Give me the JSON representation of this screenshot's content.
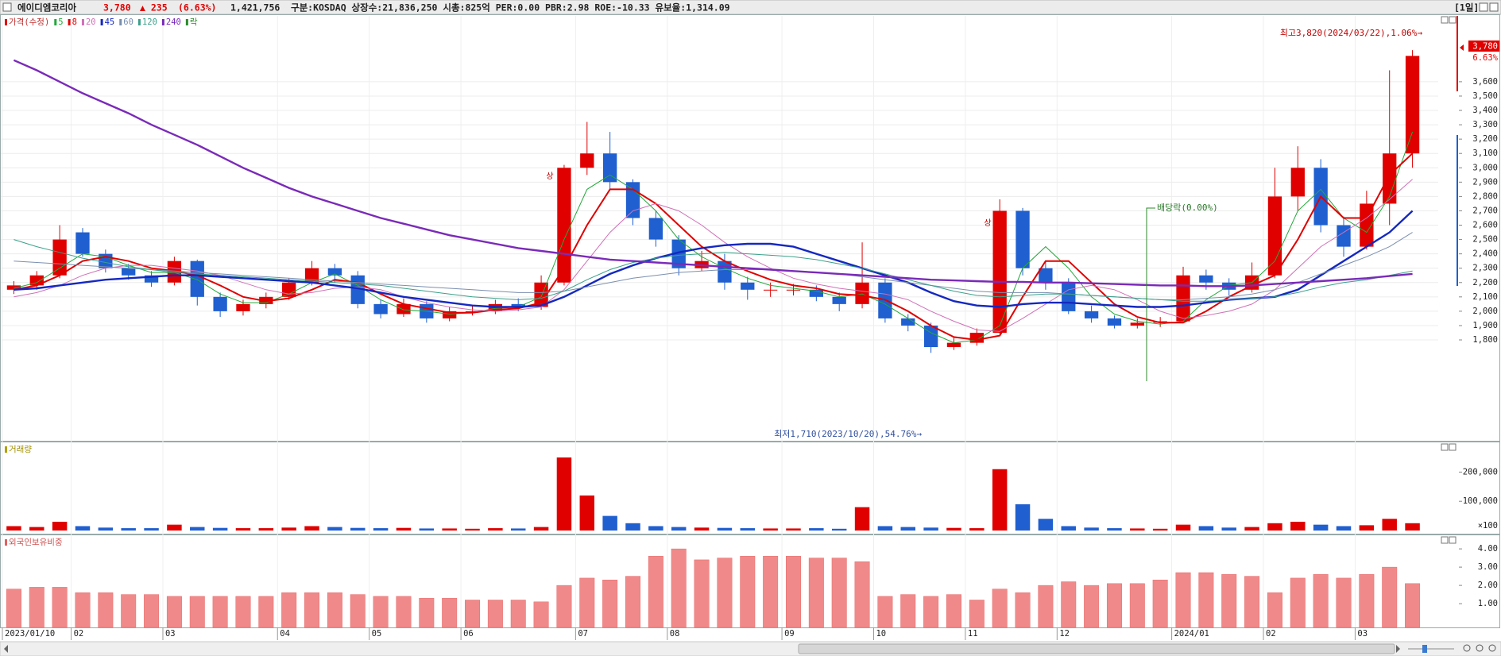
{
  "header": {
    "name": "에이디엠코리아",
    "price": "3,780",
    "change": "▲ 235",
    "change_pct": "(6.63%)",
    "volume": "1,421,756",
    "info": "구분:KOSDAQ 상장수:21,836,250 시총:825억 PER:0.00 PBR:2.98 ROE:-10.33 유보율:1,314.09",
    "period": "[1일]"
  },
  "price_tag": {
    "price": "3,780",
    "change": "6.63%"
  },
  "annotations": {
    "high": "최고3,820(2024/03/22),1.06%→",
    "low": "최저1,710(2023/10/20),54.76%→",
    "dividend": "배당락(0.00%)",
    "upper_limit": [
      "상",
      "상"
    ]
  },
  "chart_data": [
    {
      "type": "candlestick",
      "label": "가격(수정)",
      "ex_dividend_label": "락",
      "up_color": "#e00000",
      "down_color": "#1f5fd0",
      "grid": true,
      "ylim": [
        1108,
        4059
      ],
      "yticks": [
        {
          "value": 1800,
          "label": "1,800"
        },
        {
          "value": 1900,
          "label": "1,900"
        },
        {
          "value": 2000,
          "label": "2,000"
        },
        {
          "value": 2100,
          "label": "2,100"
        },
        {
          "value": 2200,
          "label": "2,200"
        },
        {
          "value": 2300,
          "label": "2,300"
        },
        {
          "value": 2400,
          "label": "2,400"
        },
        {
          "value": 2500,
          "label": "2,500"
        },
        {
          "value": 2600,
          "label": "2,600"
        },
        {
          "value": 2700,
          "label": "2,700"
        },
        {
          "value": 2800,
          "label": "2,800"
        },
        {
          "value": 2900,
          "label": "2,900"
        },
        {
          "value": 3000,
          "label": "3,000"
        },
        {
          "value": 3100,
          "label": "3,100"
        },
        {
          "value": 3200,
          "label": "3,200"
        },
        {
          "value": 3300,
          "label": "3,300"
        },
        {
          "value": 3400,
          "label": "3,400"
        },
        {
          "value": 3500,
          "label": "3,500"
        },
        {
          "value": 3600,
          "label": "3,600"
        }
      ],
      "open": [
        2150,
        2180,
        2250,
        2550,
        2400,
        2300,
        2250,
        2200,
        2350,
        2100,
        2000,
        2050,
        2100,
        2200,
        2300,
        2250,
        2050,
        1980,
        2050,
        1950,
        2000,
        2000,
        2050,
        2030,
        2200,
        3000,
        3100,
        2900,
        2650,
        2500,
        2300,
        2350,
        2200,
        2150,
        2150,
        2150,
        2100,
        2050,
        2200,
        1950,
        1900,
        1750,
        1780,
        1850,
        2700,
        2300,
        2200,
        2000,
        1950,
        1900,
        1920,
        1930,
        2250,
        2200,
        2150,
        2250,
        2800,
        3000,
        2600,
        2450,
        2750,
        3100
      ],
      "high": [
        2210,
        2280,
        2600,
        2580,
        2430,
        2330,
        2280,
        2380,
        2360,
        2130,
        2080,
        2130,
        2230,
        2350,
        2330,
        2280,
        2080,
        2090,
        2070,
        2030,
        2040,
        2080,
        2090,
        2250,
        3020,
        3320,
        3250,
        2920,
        2700,
        2530,
        2420,
        2400,
        2240,
        2200,
        2190,
        2180,
        2130,
        2480,
        2230,
        1980,
        1920,
        1820,
        1880,
        2780,
        2720,
        2350,
        2230,
        2040,
        1970,
        1950,
        1960,
        2310,
        2290,
        2230,
        2340,
        3000,
        3150,
        3060,
        2660,
        2840,
        3680,
        3820
      ],
      "low": [
        2120,
        2150,
        2230,
        2380,
        2270,
        2220,
        2170,
        2180,
        2040,
        1960,
        1970,
        2020,
        2080,
        2180,
        2200,
        2020,
        1950,
        1960,
        1920,
        1930,
        1970,
        1980,
        2000,
        2010,
        2180,
        2950,
        2850,
        2600,
        2450,
        2250,
        2280,
        2150,
        2080,
        2100,
        2110,
        2070,
        2000,
        2020,
        1920,
        1860,
        1710,
        1730,
        1760,
        1840,
        2250,
        2150,
        1980,
        1920,
        1880,
        1880,
        1890,
        1920,
        2150,
        2110,
        2130,
        2230,
        2700,
        2550,
        2380,
        2430,
        2600,
        3000
      ],
      "close": [
        2180,
        2250,
        2500,
        2400,
        2300,
        2250,
        2200,
        2350,
        2100,
        2000,
        2050,
        2100,
        2200,
        2300,
        2250,
        2050,
        1980,
        2050,
        1950,
        2000,
        2000,
        2050,
        2030,
        2200,
        3000,
        3100,
        2900,
        2650,
        2500,
        2300,
        2350,
        2200,
        2150,
        2150,
        2150,
        2100,
        2050,
        2200,
        1950,
        1900,
        1750,
        1780,
        1850,
        2700,
        2300,
        2200,
        2000,
        1950,
        1900,
        1920,
        1930,
        2250,
        2200,
        2150,
        2250,
        2800,
        3000,
        2600,
        2450,
        2750,
        3100,
        3780
      ],
      "series": [
        {
          "name": "5",
          "color": "#22a83a",
          "width": 1,
          "values": [
            2160,
            2200,
            2300,
            2400,
            2380,
            2320,
            2270,
            2270,
            2220,
            2120,
            2060,
            2060,
            2120,
            2200,
            2260,
            2180,
            2080,
            2010,
            2000,
            1980,
            1990,
            2020,
            2030,
            2100,
            2500,
            2850,
            2950,
            2850,
            2700,
            2500,
            2380,
            2300,
            2230,
            2180,
            2160,
            2140,
            2100,
            2120,
            2050,
            1950,
            1850,
            1780,
            1800,
            1900,
            2300,
            2450,
            2300,
            2100,
            1980,
            1930,
            1910,
            1930,
            2080,
            2180,
            2200,
            2350,
            2700,
            2850,
            2650,
            2550,
            2800,
            3250
          ]
        },
        {
          "name": "8",
          "color": "#e00000",
          "width": 2,
          "values": [
            2150,
            2180,
            2250,
            2350,
            2380,
            2350,
            2300,
            2280,
            2250,
            2180,
            2100,
            2070,
            2090,
            2150,
            2220,
            2200,
            2120,
            2050,
            2020,
            1990,
            1990,
            2010,
            2020,
            2060,
            2300,
            2600,
            2850,
            2850,
            2750,
            2600,
            2450,
            2350,
            2280,
            2220,
            2180,
            2160,
            2120,
            2110,
            2080,
            2000,
            1900,
            1820,
            1800,
            1830,
            2100,
            2350,
            2350,
            2200,
            2050,
            1960,
            1920,
            1920,
            2000,
            2100,
            2180,
            2250,
            2500,
            2800,
            2650,
            2650,
            2950,
            3100
          ]
        },
        {
          "name": "20",
          "color": "#d070b8",
          "width": 1,
          "values": [
            2100,
            2130,
            2180,
            2250,
            2300,
            2320,
            2320,
            2300,
            2280,
            2250,
            2200,
            2150,
            2120,
            2130,
            2160,
            2170,
            2150,
            2100,
            2060,
            2030,
            2010,
            2000,
            2010,
            2030,
            2150,
            2350,
            2550,
            2700,
            2750,
            2700,
            2600,
            2480,
            2380,
            2300,
            2230,
            2190,
            2160,
            2140,
            2120,
            2080,
            2000,
            1930,
            1870,
            1860,
            1950,
            2050,
            2150,
            2180,
            2150,
            2080,
            2000,
            1950,
            1970,
            2000,
            2050,
            2150,
            2300,
            2450,
            2550,
            2650,
            2780,
            2920
          ]
        },
        {
          "name": "45",
          "color": "#1428c0",
          "width": 2.4,
          "values": [
            2150,
            2160,
            2180,
            2200,
            2220,
            2230,
            2240,
            2250,
            2250,
            2240,
            2230,
            2220,
            2210,
            2200,
            2180,
            2160,
            2130,
            2100,
            2080,
            2060,
            2040,
            2030,
            2030,
            2040,
            2100,
            2180,
            2260,
            2320,
            2370,
            2410,
            2440,
            2460,
            2470,
            2470,
            2450,
            2400,
            2350,
            2300,
            2250,
            2200,
            2130,
            2070,
            2040,
            2030,
            2050,
            2060,
            2060,
            2050,
            2040,
            2030,
            2030,
            2040,
            2060,
            2080,
            2090,
            2100,
            2150,
            2250,
            2350,
            2450,
            2550,
            2700
          ]
        },
        {
          "name": "60",
          "color": "#7a8fb0",
          "width": 1,
          "values": [
            2350,
            2340,
            2330,
            2320,
            2310,
            2300,
            2290,
            2280,
            2270,
            2260,
            2250,
            2240,
            2230,
            2220,
            2210,
            2200,
            2190,
            2180,
            2170,
            2160,
            2150,
            2140,
            2130,
            2130,
            2140,
            2170,
            2200,
            2230,
            2250,
            2270,
            2280,
            2290,
            2290,
            2290,
            2280,
            2270,
            2260,
            2240,
            2220,
            2200,
            2180,
            2160,
            2140,
            2130,
            2130,
            2130,
            2120,
            2110,
            2100,
            2090,
            2080,
            2080,
            2090,
            2100,
            2120,
            2150,
            2200,
            2260,
            2320,
            2380,
            2450,
            2550
          ]
        },
        {
          "name": "120",
          "color": "#3aa08a",
          "width": 1,
          "values": [
            2500,
            2450,
            2410,
            2370,
            2340,
            2310,
            2290,
            2270,
            2260,
            2250,
            2240,
            2230,
            2220,
            2210,
            2200,
            2190,
            2180,
            2160,
            2140,
            2120,
            2100,
            2090,
            2080,
            2090,
            2140,
            2220,
            2290,
            2340,
            2370,
            2390,
            2400,
            2410,
            2400,
            2390,
            2380,
            2360,
            2330,
            2300,
            2260,
            2220,
            2180,
            2140,
            2110,
            2100,
            2110,
            2120,
            2120,
            2110,
            2100,
            2090,
            2080,
            2070,
            2070,
            2080,
            2090,
            2100,
            2130,
            2170,
            2200,
            2220,
            2250,
            2280
          ]
        },
        {
          "name": "240",
          "color": "#7a2ab8",
          "width": 2.4,
          "values": [
            3750,
            3680,
            3600,
            3520,
            3450,
            3380,
            3300,
            3230,
            3160,
            3080,
            3000,
            2930,
            2860,
            2800,
            2750,
            2700,
            2650,
            2610,
            2570,
            2530,
            2500,
            2470,
            2440,
            2420,
            2400,
            2380,
            2360,
            2350,
            2340,
            2330,
            2320,
            2310,
            2300,
            2290,
            2280,
            2270,
            2260,
            2250,
            2240,
            2230,
            2220,
            2215,
            2210,
            2205,
            2205,
            2200,
            2200,
            2195,
            2190,
            2185,
            2180,
            2180,
            2175,
            2175,
            2180,
            2190,
            2200,
            2210,
            2220,
            2230,
            2245,
            2260
          ]
        }
      ]
    },
    {
      "type": "bar",
      "label": "거래량",
      "up_color": "#e00000",
      "down_color": "#1f5fd0",
      "unit_label": "×100",
      "ylim": [
        0,
        280000
      ],
      "yticks": [
        {
          "value": 100000,
          "label": "100,000"
        },
        {
          "value": 200000,
          "label": "200,000"
        }
      ],
      "values": [
        15000,
        12000,
        30000,
        15000,
        10000,
        8000,
        8000,
        20000,
        12000,
        9000,
        8000,
        8000,
        10000,
        15000,
        12000,
        9000,
        8000,
        9000,
        7000,
        7000,
        6000,
        8000,
        7000,
        12000,
        250000,
        120000,
        50000,
        25000,
        15000,
        12000,
        10000,
        9000,
        8000,
        7000,
        7000,
        8000,
        6000,
        80000,
        15000,
        12000,
        10000,
        9000,
        8000,
        210000,
        90000,
        40000,
        15000,
        10000,
        8000,
        7000,
        6000,
        20000,
        15000,
        10000,
        12000,
        25000,
        30000,
        20000,
        15000,
        18000,
        40000,
        25000
      ]
    },
    {
      "type": "bar",
      "label": "외국인보유비중",
      "color": "#f08a8a",
      "ylim": [
        -0.3,
        4.57
      ],
      "yticks": [
        {
          "value": 1,
          "label": "1.00"
        },
        {
          "value": 2,
          "label": "2.00"
        },
        {
          "value": 3,
          "label": "3.00"
        },
        {
          "value": 4,
          "label": "4.00"
        }
      ],
      "values": [
        1.8,
        1.9,
        1.9,
        1.6,
        1.6,
        1.5,
        1.5,
        1.4,
        1.4,
        1.4,
        1.4,
        1.4,
        1.6,
        1.6,
        1.6,
        1.5,
        1.4,
        1.4,
        1.3,
        1.3,
        1.2,
        1.2,
        1.2,
        1.1,
        2.0,
        2.4,
        2.3,
        2.5,
        3.6,
        4.0,
        3.4,
        3.5,
        3.6,
        3.6,
        3.6,
        3.5,
        3.5,
        3.3,
        1.4,
        1.5,
        1.4,
        1.5,
        1.2,
        1.8,
        1.6,
        2.0,
        2.2,
        2.0,
        2.1,
        2.1,
        2.3,
        2.7,
        2.7,
        2.6,
        2.5,
        1.6,
        2.4,
        2.6,
        2.4,
        2.6,
        3.0,
        2.1
      ],
      "categories": [
        "2023/01/10",
        null,
        null,
        "02",
        null,
        null,
        null,
        "03",
        null,
        null,
        null,
        null,
        "04",
        null,
        null,
        null,
        "05",
        null,
        null,
        null,
        "06",
        null,
        null,
        null,
        null,
        "07",
        null,
        null,
        null,
        "08",
        null,
        null,
        null,
        null,
        "09",
        null,
        null,
        null,
        "10",
        null,
        null,
        null,
        "11",
        null,
        null,
        null,
        "12",
        null,
        null,
        null,
        null,
        "2024/01",
        null,
        null,
        null,
        "02",
        null,
        null,
        null,
        "03",
        null,
        null
      ]
    }
  ]
}
